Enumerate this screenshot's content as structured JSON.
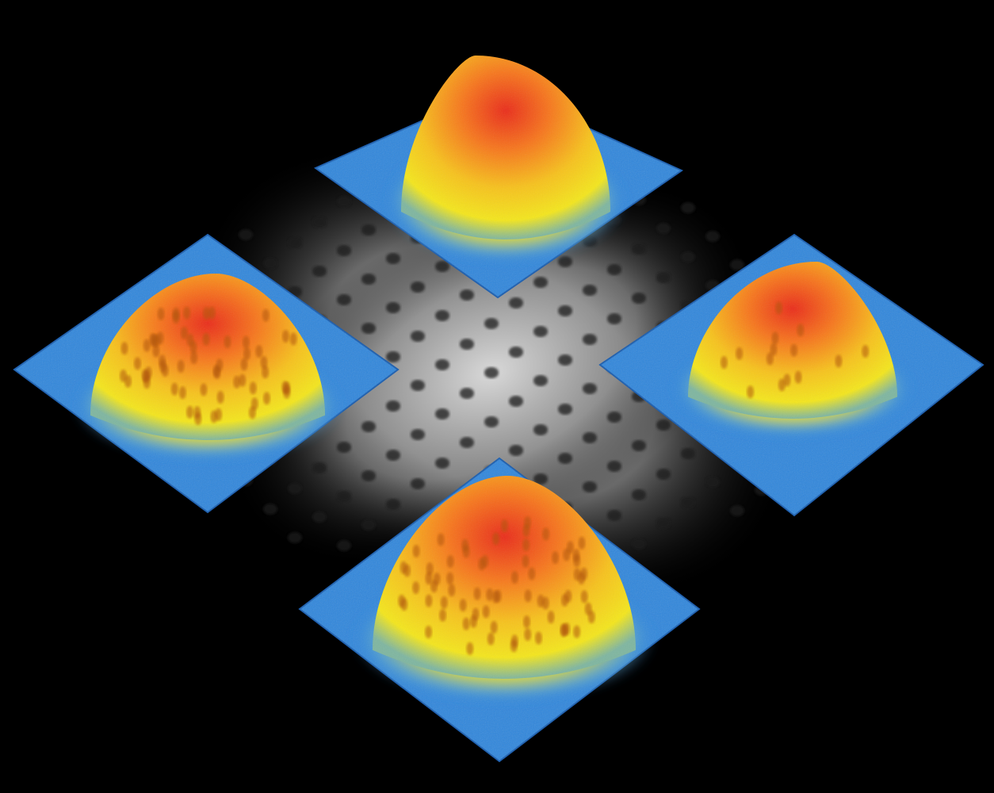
{
  "scene": {
    "background_color": "#000000",
    "colors": {
      "base_plate": "#2f86dc",
      "base_plate_dark": "#1c5fb0",
      "low": "#f4e21a",
      "mid": "#f8a81c",
      "high": "#f0501a",
      "peak": "#e8281a",
      "vortex_pit": "#b0560e",
      "gray_light": "#d9d9d9",
      "gray_dark": "#2a2a2a",
      "lattice_spot": "#1a1a1a"
    },
    "panels": [
      {
        "id": "top",
        "position": "top",
        "vortex_count": 0
      },
      {
        "id": "left",
        "position": "left",
        "vortex_count": 60
      },
      {
        "id": "right",
        "position": "right",
        "vortex_count": 14
      },
      {
        "id": "bottom",
        "position": "bottom",
        "vortex_count": 70
      }
    ],
    "center_image": {
      "description_visible": false,
      "lattice": "triangular"
    }
  }
}
